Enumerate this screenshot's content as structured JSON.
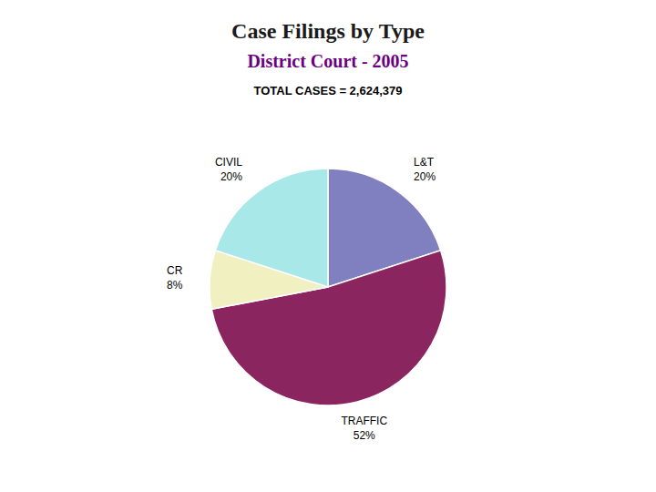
{
  "chart_data": {
    "type": "pie",
    "title": "Case Filings by Type",
    "subtitle": "District Court - 2005",
    "annotations": [
      "TOTAL CASES = 2,624,379"
    ],
    "categories": [
      "L&T",
      "TRAFFIC",
      "CR",
      "CIVIL"
    ],
    "values": [
      20,
      52,
      8,
      20
    ],
    "value_labels": [
      "20%",
      "52%",
      "8%",
      "20%"
    ],
    "data_labels": true,
    "colors": [
      "#8080C0",
      "#8B2560",
      "#F0F0C0",
      "#A8E8E8"
    ]
  }
}
